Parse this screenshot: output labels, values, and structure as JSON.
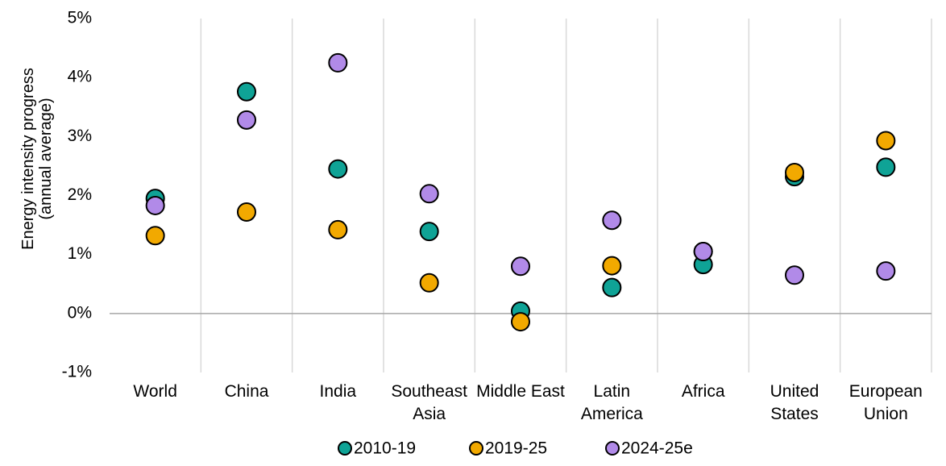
{
  "chart_data": {
    "type": "dot",
    "y_label": "Energy intensity progress (annual average)",
    "categories": [
      "World",
      "China",
      "India",
      "Southeast Asia",
      "Middle East",
      "Latin America",
      "Africa",
      "United States",
      "European Union"
    ],
    "series": [
      {
        "name": "2010-19",
        "color": "#0fa396",
        "values": [
          1.95,
          3.76,
          2.45,
          1.39,
          0.04,
          0.44,
          0.83,
          2.32,
          2.48
        ]
      },
      {
        "name": "2019-25",
        "color": "#f2a900",
        "values": [
          1.32,
          1.72,
          1.42,
          0.52,
          -0.14,
          0.81,
          1.05,
          2.39,
          2.93
        ]
      },
      {
        "name": "2024-25e",
        "color": "#b18ae8",
        "values": [
          1.83,
          3.28,
          4.25,
          2.03,
          0.8,
          1.58,
          1.05,
          0.65,
          0.72
        ]
      }
    ],
    "ylim": [
      -1,
      5
    ],
    "yticks": [
      {
        "value": -1,
        "label": "-1%"
      },
      {
        "value": 0,
        "label": "0%"
      },
      {
        "value": 1,
        "label": "1%"
      },
      {
        "value": 2,
        "label": "2%"
      },
      {
        "value": 3,
        "label": "3%"
      },
      {
        "value": 4,
        "label": "4%"
      },
      {
        "value": 5,
        "label": "5%"
      }
    ],
    "legend": "bottom"
  }
}
